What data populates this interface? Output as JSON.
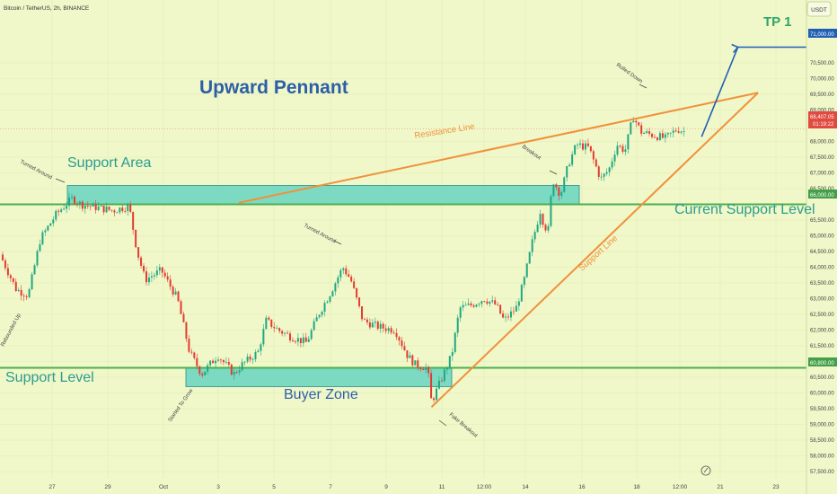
{
  "header": {
    "symbol_line": "Bitcoin / TetherUS, 2h, BINANCE",
    "currency_badge": "USDT"
  },
  "annotations": {
    "title": "Upward Pennant",
    "tp": "TP 1",
    "support_area": "Support Area",
    "support_level": "Support Level",
    "buyer_zone": "Buyer Zone",
    "current_support_level": "Current Support Level",
    "resistance_line": "Resistance Line",
    "support_line": "Support Line",
    "turned_around_1": "Turned Around",
    "turned_around_2": "Turned Around",
    "rebounded_up": "Rebounded Up",
    "started_to_grow": "Started To Grow",
    "fake_breakout": "Fake Breakout",
    "breakout": "Breakout",
    "rolled_down": "Rolled Down"
  },
  "price_tags": {
    "tp_level": "71,000.00",
    "current_price": "68,407.05",
    "countdown": "01:19:22",
    "current_support": "66,000.00",
    "support": "60,800.00"
  },
  "colors": {
    "background": "#f0f7c8",
    "up": "#1fa882",
    "down": "#e33b33",
    "zone_fill": "#6fd6c1",
    "zone_border": "#2a8f86",
    "level_line": "#4caf50",
    "trend_line": "#f0913c",
    "projection": "#1f5fb5",
    "annotation_blue": "#2d5fa8",
    "annotation_teal": "#2a9d8f",
    "tp_green": "#2ea56a",
    "price_tag_red": "#e04a3f",
    "price_tag_blue": "#1f5fb5",
    "price_tag_green": "#43a047"
  },
  "chart_data": {
    "type": "candlestick",
    "title": "",
    "y_axis": {
      "min": 57300,
      "max": 72500,
      "ticks": [
        "57,500.00",
        "58,000.00",
        "58,500.00",
        "59,000.00",
        "59,500.00",
        "60,000.00",
        "60,500.00",
        "61,000.00",
        "61,500.00",
        "62,000.00",
        "62,500.00",
        "63,000.00",
        "63,500.00",
        "64,000.00",
        "64,500.00",
        "65,000.00",
        "65,500.00",
        "66,500.00",
        "67,000.00",
        "67,500.00",
        "68,000.00",
        "69,000.00",
        "69,500.00",
        "70,000.00",
        "70,500.00"
      ]
    },
    "x_axis": {
      "ticks": [
        "27",
        "29",
        "Oct",
        "3",
        "5",
        "7",
        "9",
        "11",
        "12:00",
        "14",
        "16",
        "18",
        "12:00",
        "21",
        "23"
      ]
    },
    "levels": [
      {
        "name": "current-support",
        "price": 66000
      },
      {
        "name": "support",
        "price": 60800
      },
      {
        "name": "last-price",
        "price": 68407
      }
    ],
    "zones": [
      {
        "name": "support-area",
        "from": 66000,
        "to": 66600
      },
      {
        "name": "buyer-zone",
        "from": 60200,
        "to": 60800
      }
    ],
    "trendlines": [
      {
        "name": "resistance-line",
        "from": {
          "t": 29.6,
          "p": 66050
        },
        "to": {
          "t": 94,
          "p": 69550
        }
      },
      {
        "name": "support-line",
        "from": {
          "t": 53.5,
          "p": 59550
        },
        "to": {
          "t": 94,
          "p": 69550
        }
      }
    ],
    "projection": [
      {
        "t": 87,
        "p": 68150
      },
      {
        "t": 91.5,
        "p": 71000
      },
      {
        "t": 100,
        "p": 71000
      }
    ],
    "close_path": [
      {
        "t": 0,
        "p": 64400
      },
      {
        "t": 2,
        "p": 63300
      },
      {
        "t": 3.5,
        "p": 63100
      },
      {
        "t": 5,
        "p": 64900
      },
      {
        "t": 7,
        "p": 65700
      },
      {
        "t": 9,
        "p": 66200
      },
      {
        "t": 10,
        "p": 66000
      },
      {
        "t": 12,
        "p": 65900
      },
      {
        "t": 14,
        "p": 65800
      },
      {
        "t": 16,
        "p": 65950
      },
      {
        "t": 17,
        "p": 64500
      },
      {
        "t": 18,
        "p": 63600
      },
      {
        "t": 20,
        "p": 63900
      },
      {
        "t": 22,
        "p": 63000
      },
      {
        "t": 23.5,
        "p": 61300
      },
      {
        "t": 25,
        "p": 60600
      },
      {
        "t": 27,
        "p": 61200
      },
      {
        "t": 29,
        "p": 60600
      },
      {
        "t": 30,
        "p": 60900
      },
      {
        "t": 32,
        "p": 61300
      },
      {
        "t": 33,
        "p": 62300
      },
      {
        "t": 34.5,
        "p": 62000
      },
      {
        "t": 36,
        "p": 61800
      },
      {
        "t": 38,
        "p": 61600
      },
      {
        "t": 39.5,
        "p": 62500
      },
      {
        "t": 41,
        "p": 63200
      },
      {
        "t": 42.5,
        "p": 64000
      },
      {
        "t": 43.5,
        "p": 63600
      },
      {
        "t": 45,
        "p": 62300
      },
      {
        "t": 47,
        "p": 62100
      },
      {
        "t": 49,
        "p": 62000
      },
      {
        "t": 50.5,
        "p": 61200
      },
      {
        "t": 51.5,
        "p": 60900
      },
      {
        "t": 53,
        "p": 60800
      },
      {
        "t": 53.5,
        "p": 59700
      },
      {
        "t": 54.5,
        "p": 60300
      },
      {
        "t": 56,
        "p": 61200
      },
      {
        "t": 57,
        "p": 62700
      },
      {
        "t": 58.5,
        "p": 62800
      },
      {
        "t": 60,
        "p": 63000
      },
      {
        "t": 61.5,
        "p": 62800
      },
      {
        "t": 62.5,
        "p": 62300
      },
      {
        "t": 64,
        "p": 62700
      },
      {
        "t": 65,
        "p": 63600
      },
      {
        "t": 66,
        "p": 64800
      },
      {
        "t": 67,
        "p": 65800
      },
      {
        "t": 67.5,
        "p": 65300
      },
      {
        "t": 68,
        "p": 65200
      },
      {
        "t": 68.5,
        "p": 66800
      },
      {
        "t": 69.5,
        "p": 66300
      },
      {
        "t": 70.5,
        "p": 67300
      },
      {
        "t": 71.5,
        "p": 67900
      },
      {
        "t": 73,
        "p": 67800
      },
      {
        "t": 74.5,
        "p": 66800
      },
      {
        "t": 75.5,
        "p": 67100
      },
      {
        "t": 76.5,
        "p": 67900
      },
      {
        "t": 77.5,
        "p": 67700
      },
      {
        "t": 78.5,
        "p": 68800
      },
      {
        "t": 79.5,
        "p": 68300
      },
      {
        "t": 81,
        "p": 68200
      },
      {
        "t": 82.5,
        "p": 68100
      },
      {
        "t": 84,
        "p": 68400
      },
      {
        "t": 85,
        "p": 68300
      }
    ]
  }
}
